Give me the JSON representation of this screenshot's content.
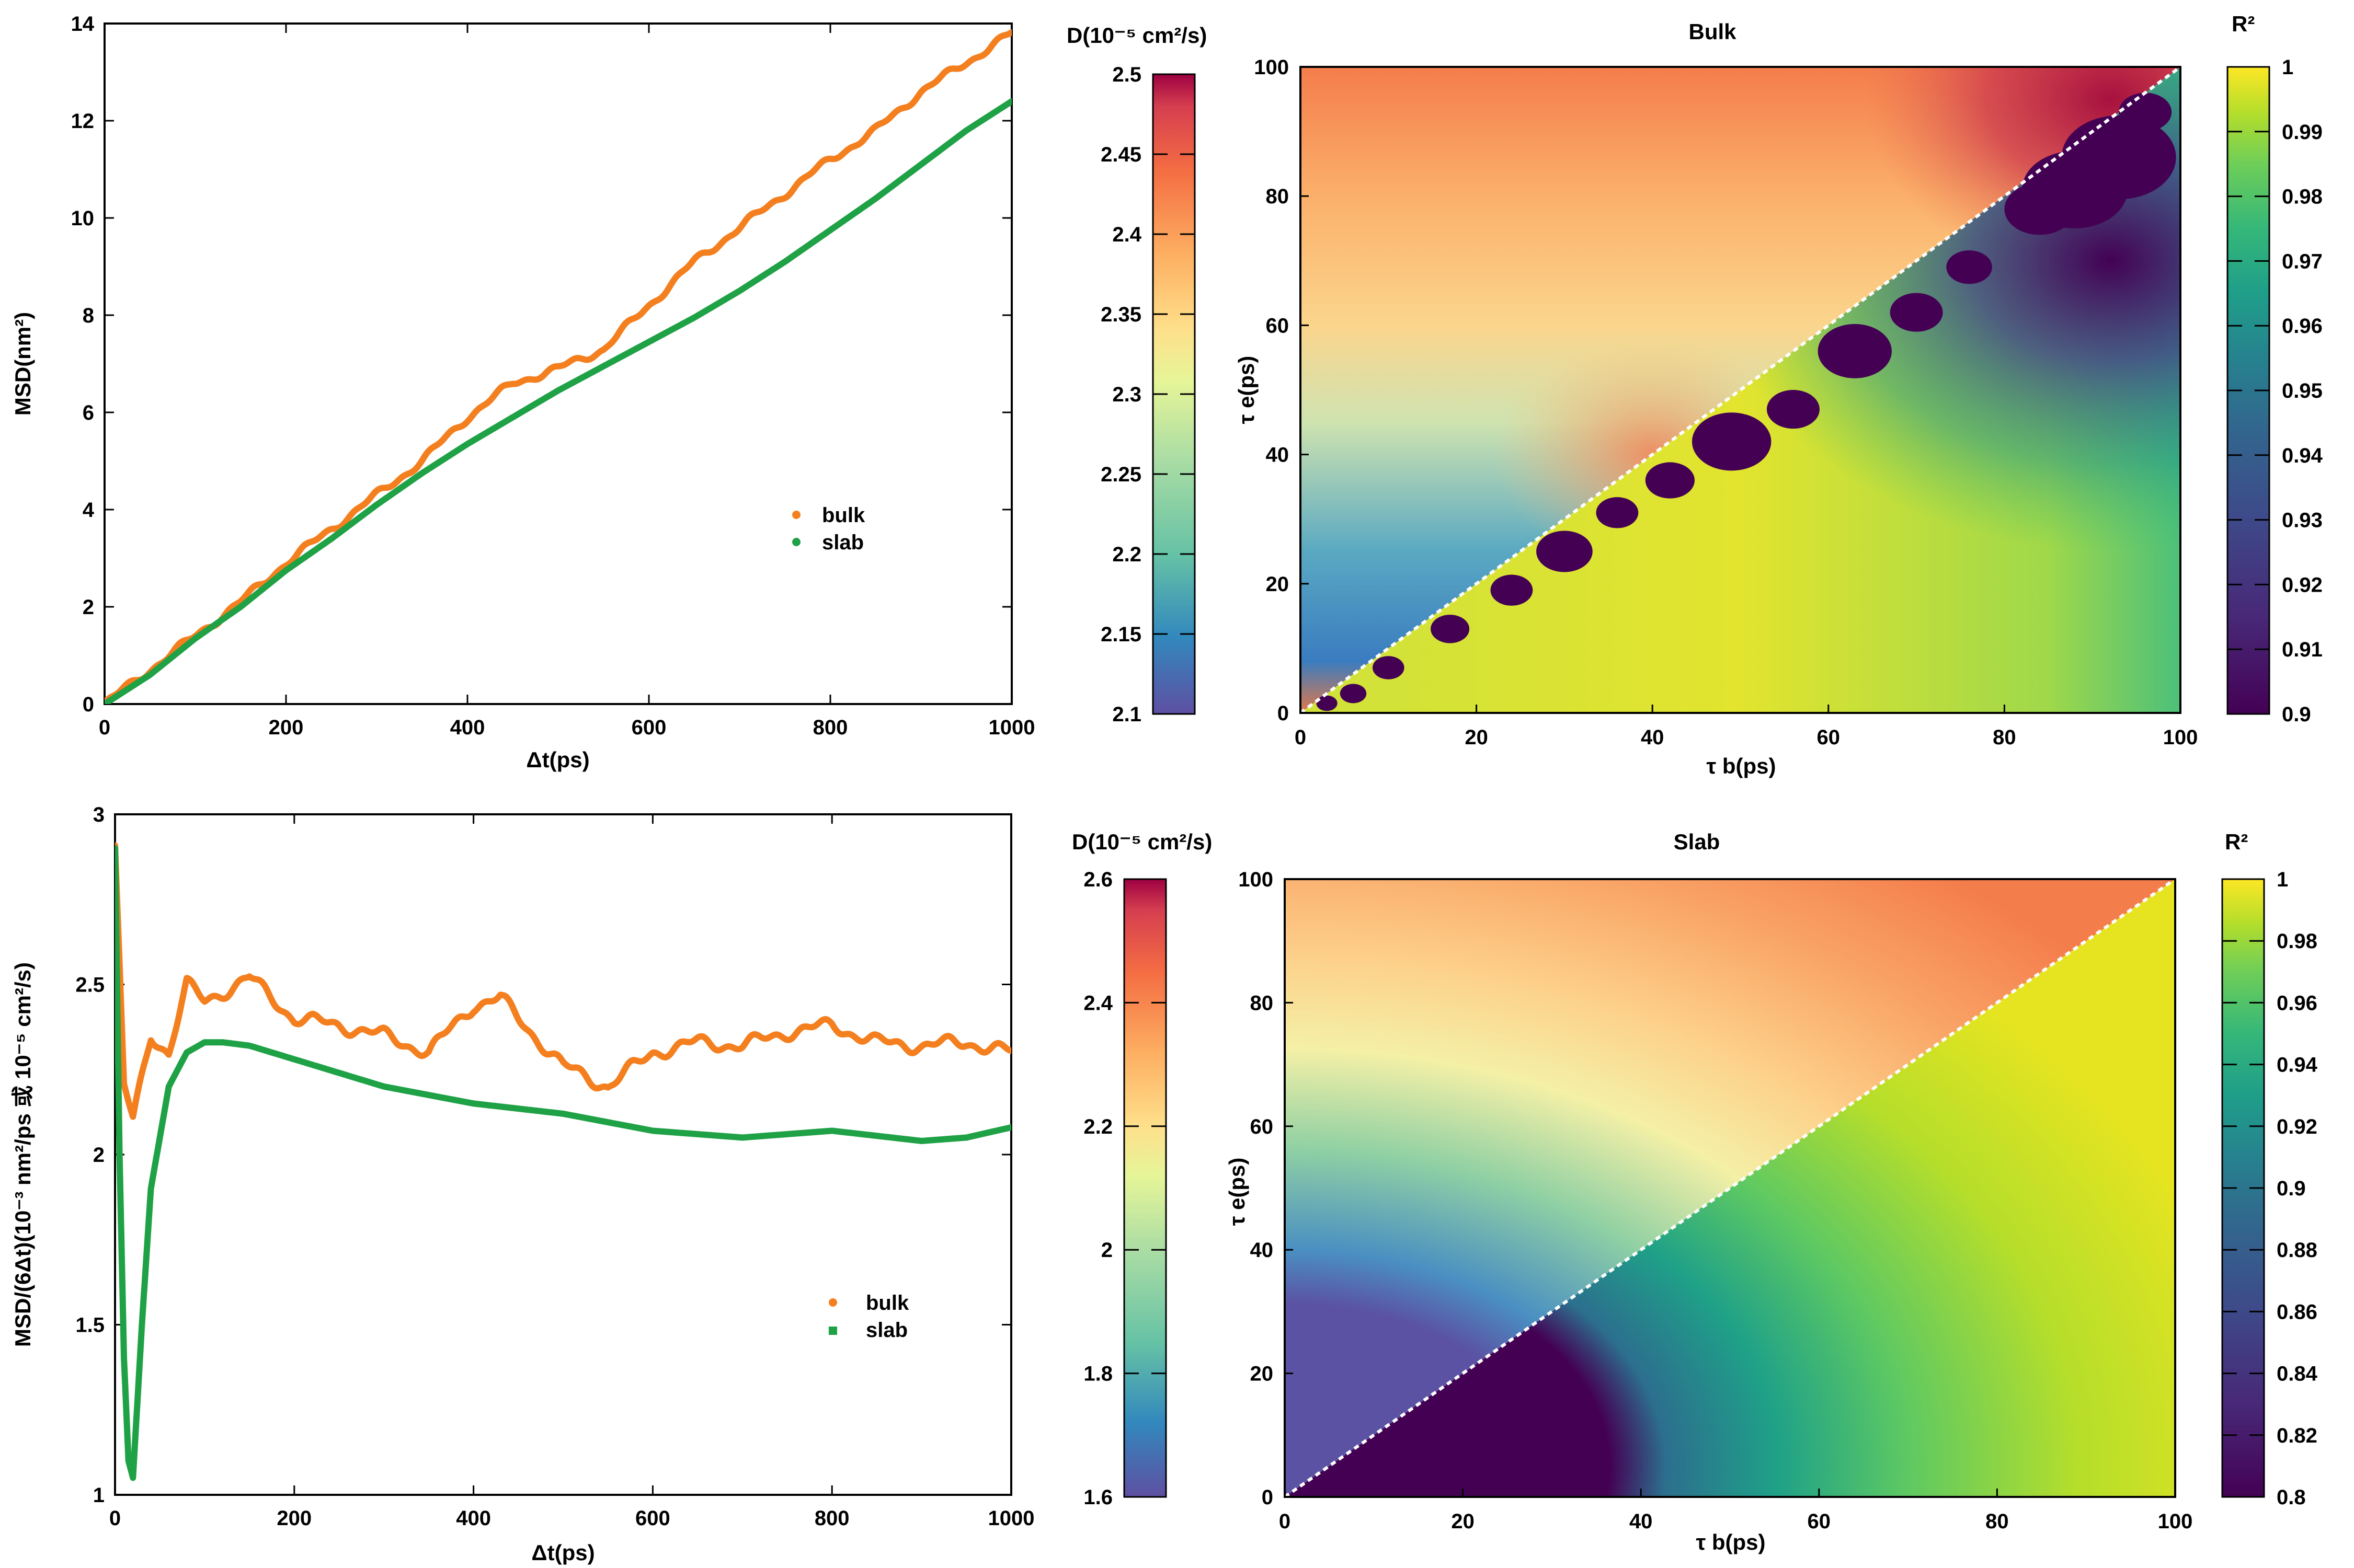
{
  "chart_data": [
    {
      "id": "msd",
      "type": "line",
      "xlabel": "Δt(ps)",
      "ylabel": "MSD(nm²)",
      "xlim": [
        0,
        1000
      ],
      "ylim": [
        0,
        14
      ],
      "xticks": [
        "0",
        "200",
        "400",
        "600",
        "800",
        "1000"
      ],
      "yticks": [
        "0",
        "2",
        "4",
        "6",
        "8",
        "10",
        "12",
        "14"
      ],
      "legend_position": "lower-right",
      "series": [
        {
          "name": "bulk",
          "color": "#f47f1f",
          "x": [
            0,
            50,
            100,
            150,
            200,
            250,
            300,
            350,
            400,
            450,
            500,
            550,
            600,
            650,
            700,
            750,
            800,
            850,
            900,
            950,
            1000
          ],
          "y": [
            0,
            0.7,
            1.4,
            2.1,
            2.9,
            3.6,
            4.3,
            5.0,
            5.9,
            6.6,
            6.9,
            7.3,
            8.2,
            9.1,
            9.8,
            10.5,
            11.2,
            11.8,
            12.6,
            13.2,
            13.8
          ]
        },
        {
          "name": "slab",
          "color": "#1fa146",
          "x": [
            0,
            50,
            100,
            150,
            200,
            250,
            300,
            350,
            400,
            450,
            500,
            550,
            600,
            650,
            700,
            750,
            800,
            850,
            900,
            950,
            1000
          ],
          "y": [
            0,
            0.6,
            1.35,
            2.0,
            2.75,
            3.4,
            4.1,
            4.75,
            5.35,
            5.9,
            6.45,
            6.95,
            7.45,
            7.95,
            8.5,
            9.1,
            9.75,
            10.4,
            11.1,
            11.8,
            12.4
          ]
        }
      ]
    },
    {
      "id": "d_running",
      "type": "line",
      "xlabel": "Δt(ps)",
      "ylabel": "MSD/(6Δt)(10⁻³ nm²/ps 或 10⁻⁵ cm²/s)",
      "xlim": [
        0,
        1000
      ],
      "ylim": [
        1,
        3
      ],
      "xticks": [
        "0",
        "200",
        "400",
        "600",
        "800",
        "1000"
      ],
      "yticks": [
        "1",
        "1.5",
        "2",
        "2.5",
        "3"
      ],
      "legend_position": "lower-right",
      "series": [
        {
          "name": "bulk",
          "color": "#f47f1f",
          "x": [
            0,
            10,
            20,
            40,
            60,
            80,
            100,
            150,
            200,
            250,
            300,
            350,
            400,
            430,
            450,
            500,
            550,
            600,
            650,
            700,
            750,
            800,
            850,
            900,
            950,
            1000
          ],
          "y": [
            2.9,
            2.2,
            2.1,
            2.35,
            2.3,
            2.5,
            2.45,
            2.52,
            2.4,
            2.38,
            2.35,
            2.3,
            2.44,
            2.46,
            2.4,
            2.26,
            2.2,
            2.3,
            2.33,
            2.32,
            2.36,
            2.38,
            2.33,
            2.32,
            2.33,
            2.3
          ]
        },
        {
          "name": "slab",
          "color": "#1fa146",
          "x": [
            0,
            5,
            10,
            15,
            20,
            30,
            40,
            60,
            80,
            100,
            120,
            150,
            200,
            300,
            400,
            500,
            600,
            700,
            800,
            900,
            950,
            1000
          ],
          "y": [
            2.9,
            2.0,
            1.4,
            1.1,
            1.05,
            1.5,
            1.9,
            2.2,
            2.3,
            2.33,
            2.33,
            2.32,
            2.28,
            2.2,
            2.15,
            2.12,
            2.07,
            2.05,
            2.07,
            2.04,
            2.05,
            2.08
          ]
        }
      ]
    },
    {
      "id": "bulk_map",
      "type": "heatmap",
      "title": "Bulk",
      "xlabel": "τ b(ps)",
      "ylabel": "τ e(ps)",
      "xlim": [
        0,
        100
      ],
      "ylim": [
        0,
        100
      ],
      "xticks": [
        "0",
        "20",
        "40",
        "60",
        "80",
        "100"
      ],
      "yticks": [
        "0",
        "20",
        "40",
        "60",
        "80",
        "100"
      ],
      "upper_triangle": "D(τb, τe) fitted diffusion coefficient",
      "lower_triangle": "R² of fit",
      "colorbar_left": {
        "label": "D(10⁻⁵ cm²/s)",
        "range": [
          2.1,
          2.5
        ],
        "ticks": [
          "2.1",
          "2.15",
          "2.2",
          "2.25",
          "2.3",
          "2.35",
          "2.4",
          "2.45",
          "2.5"
        ],
        "colormap": "spectral"
      },
      "colorbar_right": {
        "label": "R²",
        "range": [
          0.9,
          1
        ],
        "ticks": [
          "0.9",
          "0.91",
          "0.92",
          "0.93",
          "0.94",
          "0.95",
          "0.96",
          "0.97",
          "0.98",
          "0.99",
          "1"
        ],
        "colormap": "viridis"
      }
    },
    {
      "id": "slab_map",
      "type": "heatmap",
      "title": "Slab",
      "xlabel": "τ b(ps)",
      "ylabel": "τ e(ps)",
      "xlim": [
        0,
        100
      ],
      "ylim": [
        0,
        100
      ],
      "xticks": [
        "0",
        "20",
        "40",
        "60",
        "80",
        "100"
      ],
      "yticks": [
        "0",
        "20",
        "40",
        "60",
        "80",
        "100"
      ],
      "upper_triangle": "D(τb, τe) fitted diffusion coefficient",
      "lower_triangle": "R² of fit",
      "colorbar_left": {
        "label": "D(10⁻⁵ cm²/s)",
        "range": [
          1.6,
          2.6
        ],
        "ticks": [
          "1.6",
          "1.8",
          "2",
          "2.2",
          "2.4",
          "2.6"
        ],
        "colormap": "spectral"
      },
      "colorbar_right": {
        "label": "R²",
        "range": [
          0.8,
          1
        ],
        "ticks": [
          "0.8",
          "0.82",
          "0.84",
          "0.86",
          "0.88",
          "0.9",
          "0.92",
          "0.94",
          "0.96",
          "0.98",
          "1"
        ],
        "colormap": "viridis"
      }
    }
  ]
}
